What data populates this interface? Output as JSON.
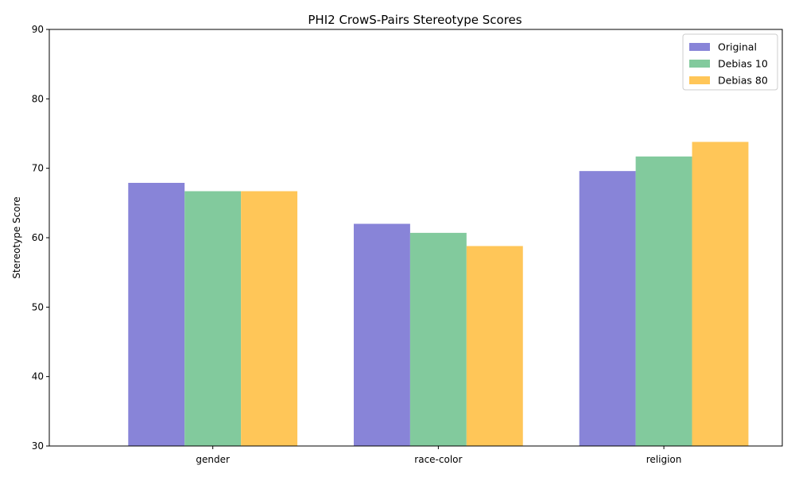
{
  "chart_data": {
    "type": "bar",
    "title": "PHI2 CrowS-Pairs Stereotype Scores",
    "xlabel": "",
    "ylabel": "Stereotype Score",
    "categories": [
      "gender",
      "race-color",
      "religion"
    ],
    "series": [
      {
        "name": "Original",
        "color": "#8884d8",
        "values": [
          67.9,
          62.0,
          69.6
        ]
      },
      {
        "name": "Debias 10",
        "color": "#82ca9d",
        "values": [
          66.7,
          60.7,
          71.7
        ]
      },
      {
        "name": "Debias 80",
        "color": "#ffc658",
        "values": [
          66.7,
          58.8,
          73.8
        ]
      }
    ],
    "ylim": [
      30,
      90
    ],
    "yticks": [
      30,
      40,
      50,
      60,
      70,
      80,
      90
    ],
    "legend_position": "top-right",
    "grid": false
  }
}
